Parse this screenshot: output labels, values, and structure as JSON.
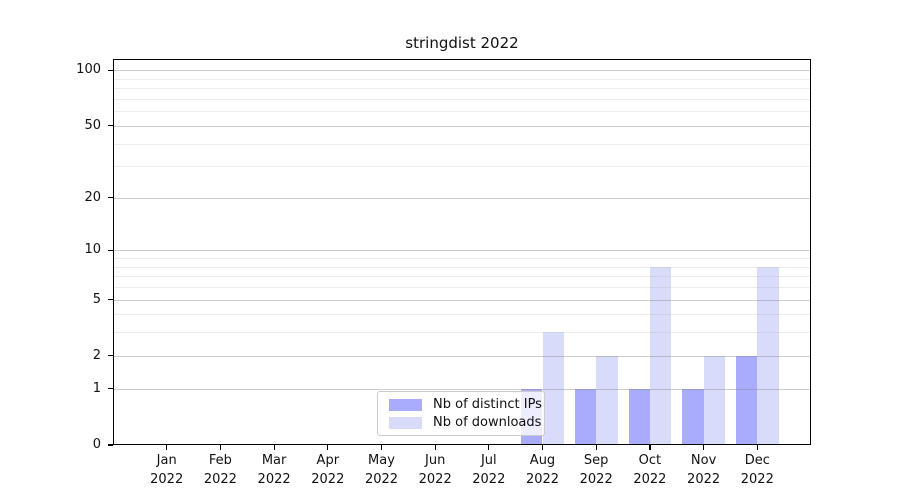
{
  "chart_data": {
    "type": "bar",
    "title": "stringdist 2022",
    "categories": [
      {
        "month": "Jan",
        "year": "2022"
      },
      {
        "month": "Feb",
        "year": "2022"
      },
      {
        "month": "Mar",
        "year": "2022"
      },
      {
        "month": "Apr",
        "year": "2022"
      },
      {
        "month": "May",
        "year": "2022"
      },
      {
        "month": "Jun",
        "year": "2022"
      },
      {
        "month": "Jul",
        "year": "2022"
      },
      {
        "month": "Aug",
        "year": "2022"
      },
      {
        "month": "Sep",
        "year": "2022"
      },
      {
        "month": "Oct",
        "year": "2022"
      },
      {
        "month": "Nov",
        "year": "2022"
      },
      {
        "month": "Dec",
        "year": "2022"
      }
    ],
    "series": [
      {
        "name": "Nb of distinct IPs",
        "color": "#a9acfa",
        "values": [
          0,
          0,
          0,
          0,
          0,
          0,
          0,
          1,
          1,
          1,
          1,
          2
        ]
      },
      {
        "name": "Nb of downloads",
        "color": "#d9dbfa",
        "values": [
          0,
          0,
          0,
          0,
          0,
          0,
          0,
          3,
          2,
          8,
          2,
          8
        ]
      }
    ],
    "yscale": "log1p",
    "major_yticks": [
      0,
      1,
      2,
      5,
      10,
      20,
      50,
      100
    ],
    "minor_yticks": [
      3,
      4,
      6,
      7,
      8,
      9,
      30,
      40,
      60,
      70,
      80,
      90
    ],
    "ylim": [
      0,
      115
    ],
    "xlabel": "",
    "ylabel": "",
    "grid": true,
    "legend_position": "lower center",
    "colors": {
      "axis": "#000000",
      "major_grid": "#c5c5c5",
      "minor_grid": "#ebebeb",
      "background": "#ffffff"
    }
  }
}
